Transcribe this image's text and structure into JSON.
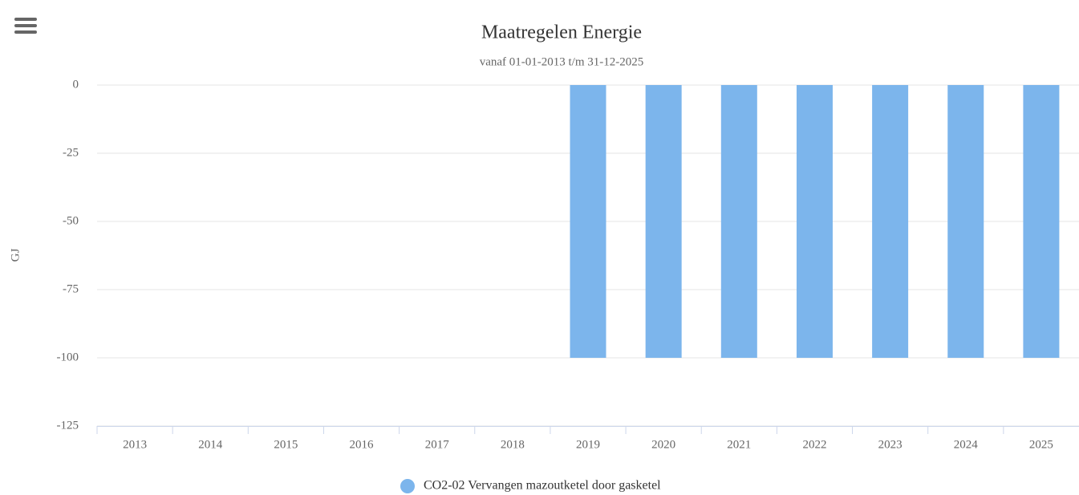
{
  "chart_data": {
    "type": "bar",
    "title": "Maatregelen Energie",
    "subtitle": "vanaf 01-01-2013 t/m 31-12-2025",
    "y_label": "GJ",
    "categories": [
      "2013",
      "2014",
      "2015",
      "2016",
      "2017",
      "2018",
      "2019",
      "2020",
      "2021",
      "2022",
      "2023",
      "2024",
      "2025"
    ],
    "series": [
      {
        "name": "CO2-02 Vervangen mazoutketel door gasketel",
        "color": "#7cb5ec",
        "values": [
          0,
          0,
          0,
          0,
          0,
          0,
          -100,
          -100,
          -100,
          -100,
          -100,
          -100,
          -100
        ]
      }
    ],
    "ylim": [
      -125,
      0
    ],
    "yticks": [
      0,
      -25,
      -50,
      -75,
      -100,
      -125
    ],
    "grid": true,
    "legend": "bottom"
  }
}
